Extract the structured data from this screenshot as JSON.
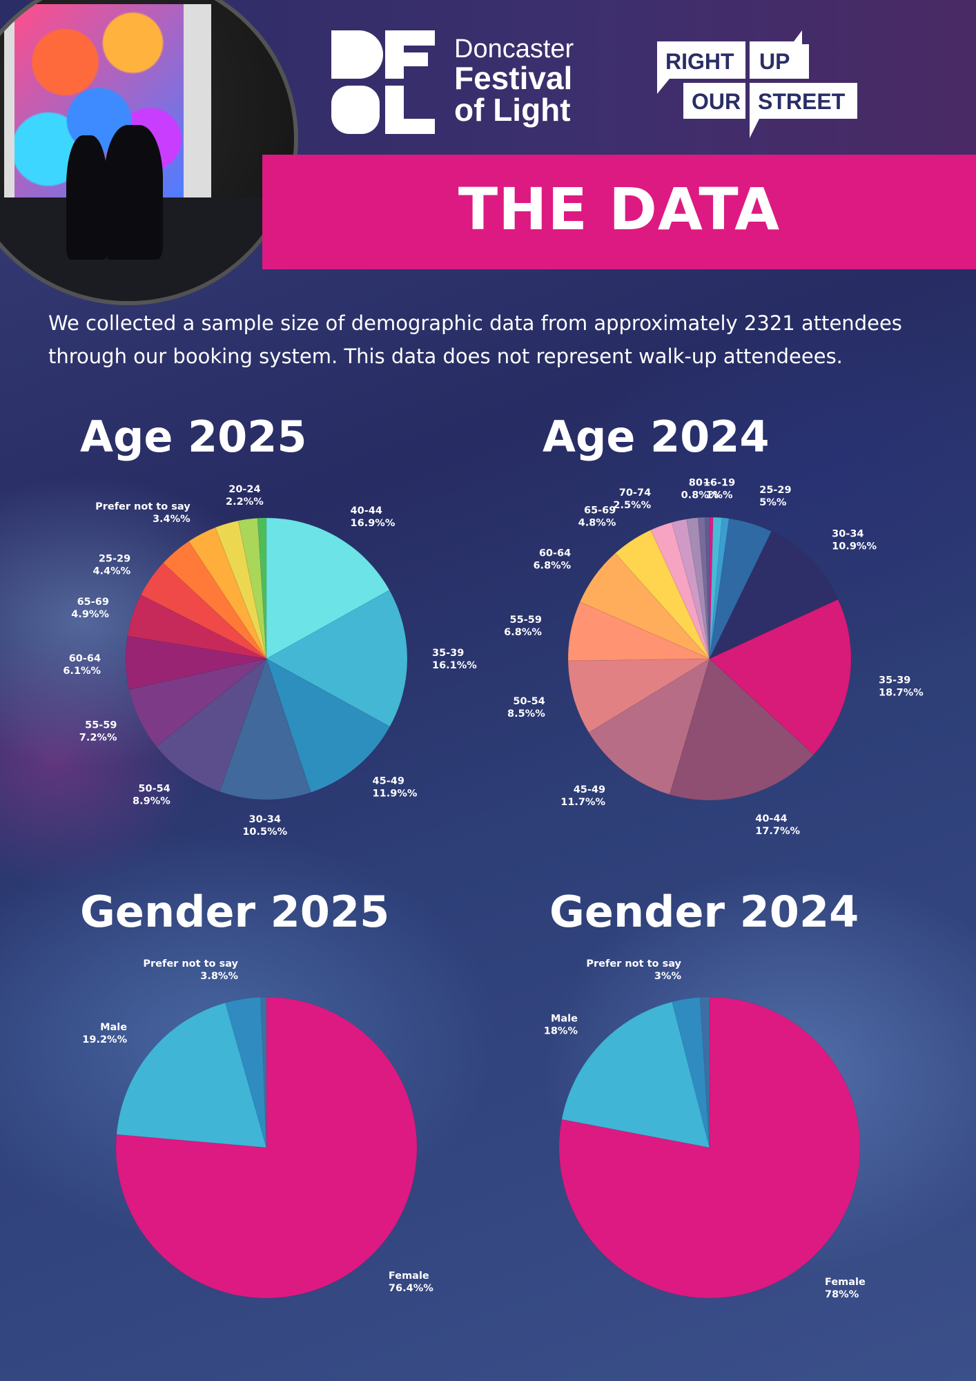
{
  "header": {
    "brand_line1": "Doncaster",
    "brand_line2": "Festival",
    "brand_line3": "of Light",
    "partner_row1_left": "RIGHT",
    "partner_row1_right": "UP",
    "partner_row2_left": "OUR",
    "partner_row2_right": "STREET"
  },
  "banner": {
    "title": "THE DATA",
    "color": "#dd1a82"
  },
  "intro": "We collected a sample size of demographic data from approximately 2321 attendees through our booking system. This data does not represent walk-up attendeees.",
  "chart_data": [
    {
      "type": "pie",
      "title": "Age 2025",
      "slices": [
        {
          "label": "40-44",
          "value": 16.9,
          "display": "16.9%%",
          "color": "#6ce3e7"
        },
        {
          "label": "35-39",
          "value": 16.1,
          "display": "16.1%%",
          "color": "#44b7d5"
        },
        {
          "label": "45-49",
          "value": 11.9,
          "display": "11.9%%",
          "color": "#2d8fbd"
        },
        {
          "label": "30-34",
          "value": 10.5,
          "display": "10.5%%",
          "color": "#41699c"
        },
        {
          "label": "50-54",
          "value": 8.9,
          "display": "8.9%%",
          "color": "#5c4e8c"
        },
        {
          "label": "55-59",
          "value": 7.2,
          "display": "7.2%%",
          "color": "#7d3a86"
        },
        {
          "label": "60-64",
          "value": 6.1,
          "display": "6.1%%",
          "color": "#992473"
        },
        {
          "label": "65-69",
          "value": 4.9,
          "display": "4.9%%",
          "color": "#c62a5b"
        },
        {
          "label": "25-29",
          "value": 4.4,
          "display": "4.4%%",
          "color": "#ef4a48"
        },
        {
          "label": "",
          "value": 3.8,
          "display": "",
          "color": "#ff7a38"
        },
        {
          "label": "Prefer not to say",
          "value": 3.4,
          "display": "3.4%%",
          "color": "#ffad3b"
        },
        {
          "label": "",
          "value": 2.7,
          "display": "",
          "color": "#ecd751"
        },
        {
          "label": "20-24",
          "value": 2.2,
          "display": "2.2%%",
          "color": "#aad65a"
        },
        {
          "label": "",
          "value": 1.0,
          "display": "",
          "color": "#4fbc5b"
        }
      ]
    },
    {
      "type": "pie",
      "title": "Age 2024",
      "slices": [
        {
          "label": "",
          "value": 0.4,
          "display": "",
          "color": "#dd1a82"
        },
        {
          "label": "16-19",
          "value": 1.0,
          "display": "1%%",
          "color": "#4ab9d8"
        },
        {
          "label": "",
          "value": 0.8,
          "display": "",
          "color": "#3b9ed0"
        },
        {
          "label": "25-29",
          "value": 5.0,
          "display": "5%%",
          "color": "#2f6aa4"
        },
        {
          "label": "30-34",
          "value": 10.9,
          "display": "10.9%%",
          "color": "#2e2f68"
        },
        {
          "label": "35-39",
          "value": 18.7,
          "display": "18.7%%",
          "color": "#d81a78"
        },
        {
          "label": "40-44",
          "value": 17.7,
          "display": "17.7%%",
          "color": "#8e4f72"
        },
        {
          "label": "45-49",
          "value": 11.7,
          "display": "11.7%%",
          "color": "#b86d86"
        },
        {
          "label": "50-54",
          "value": 8.5,
          "display": "8.5%%",
          "color": "#e18184"
        },
        {
          "label": "55-59",
          "value": 6.8,
          "display": "6.8%%",
          "color": "#ff9372"
        },
        {
          "label": "60-64",
          "value": 6.8,
          "display": "6.8%%",
          "color": "#ffad5b"
        },
        {
          "label": "65-69",
          "value": 4.8,
          "display": "4.8%%",
          "color": "#ffd44f"
        },
        {
          "label": "70-74",
          "value": 2.5,
          "display": "2.5%%",
          "color": "#f7a3c2"
        },
        {
          "label": "",
          "value": 1.7,
          "display": "",
          "color": "#cf9bc6"
        },
        {
          "label": "",
          "value": 1.3,
          "display": "",
          "color": "#a58cb5"
        },
        {
          "label": "80+",
          "value": 0.8,
          "display": "0.8%%",
          "color": "#7a6a9b"
        },
        {
          "label": "",
          "value": 0.5,
          "display": "",
          "color": "#5b5e8f"
        }
      ]
    },
    {
      "type": "pie",
      "title": "Gender 2025",
      "slices": [
        {
          "label": "Female",
          "value": 76.4,
          "display": "76.4%%",
          "color": "#dd1a82"
        },
        {
          "label": "Male",
          "value": 19.2,
          "display": "19.2%%",
          "color": "#40b5d6"
        },
        {
          "label": "Prefer not to say",
          "value": 3.8,
          "display": "3.8%%",
          "color": "#2f8bc0"
        },
        {
          "label": "",
          "value": 0.6,
          "display": "",
          "color": "#3e6fa3"
        }
      ]
    },
    {
      "type": "pie",
      "title": "Gender 2024",
      "slices": [
        {
          "label": "Female",
          "value": 78,
          "display": "78%%",
          "color": "#dd1a82"
        },
        {
          "label": "Male",
          "value": 18,
          "display": "18%%",
          "color": "#40b5d6"
        },
        {
          "label": "Prefer not to say",
          "value": 3,
          "display": "3%%",
          "color": "#2f8bc0"
        },
        {
          "label": "",
          "value": 1,
          "display": "",
          "color": "#3e6fa3"
        }
      ]
    }
  ]
}
